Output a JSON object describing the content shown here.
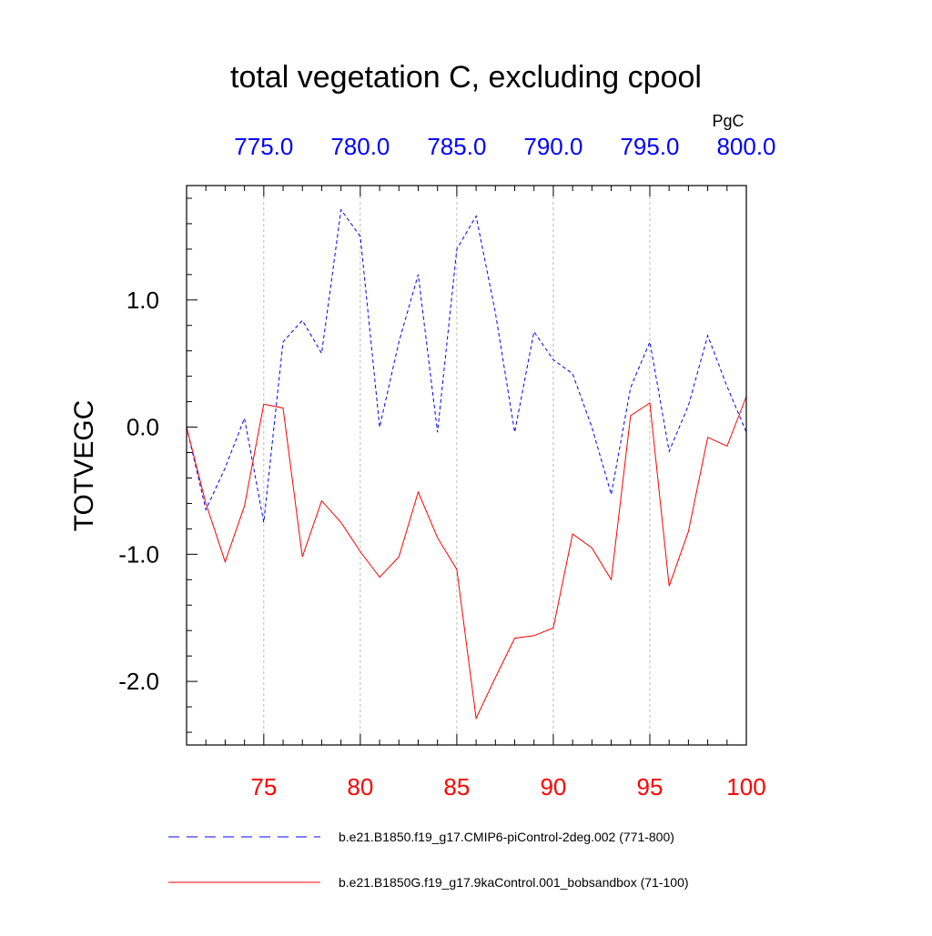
{
  "chart_data": {
    "type": "line",
    "title": "total vegetation C, excluding cpool",
    "ylabel": "TOTVEGC",
    "units": "PgC",
    "ylim": [
      -2.5,
      1.9
    ],
    "y_ticks": [
      -2.0,
      -1.0,
      0.0,
      1.0
    ],
    "y_tick_labels": [
      "-2.0",
      "-1.0",
      "0.0",
      "1.0"
    ],
    "bottom_axis": {
      "xlim": [
        71,
        100
      ],
      "ticks": [
        75,
        80,
        85,
        90,
        95,
        100
      ],
      "tick_labels": [
        "75",
        "80",
        "85",
        "90",
        "95",
        "100"
      ],
      "color": "#ff0000"
    },
    "top_axis": {
      "xlim": [
        771,
        800
      ],
      "ticks": [
        775,
        780,
        785,
        790,
        795,
        800
      ],
      "tick_labels": [
        "775.0",
        "780.0",
        "785.0",
        "790.0",
        "795.0",
        "800.0"
      ],
      "color": "#0000ff"
    },
    "grid": "vertical dashed at major x ticks",
    "legend_position": "bottom",
    "series": [
      {
        "name": "b.e21.B1850.f19_g17.CMIP6-piControl-2deg.002 (771-800)",
        "axis": "top",
        "color": "#0000ff",
        "style": "dashed",
        "x": [
          771,
          772,
          773,
          774,
          775,
          776,
          777,
          778,
          779,
          780,
          781,
          782,
          783,
          784,
          785,
          786,
          787,
          788,
          789,
          790,
          791,
          792,
          793,
          794,
          795,
          796,
          797,
          798,
          799,
          800
        ],
        "values": [
          0.0,
          -0.65,
          -0.32,
          0.07,
          -0.75,
          0.67,
          0.84,
          0.58,
          1.71,
          1.5,
          0.0,
          0.67,
          1.2,
          -0.04,
          1.4,
          1.66,
          0.9,
          -0.04,
          0.75,
          0.53,
          0.42,
          0.0,
          -0.53,
          0.31,
          0.67,
          -0.19,
          0.17,
          0.72,
          0.32,
          -0.04
        ]
      },
      {
        "name": "b.e21.B1850G.f19_g17.9kaControl.001_bobsandbox (71-100)",
        "axis": "bottom",
        "color": "#ff0000",
        "style": "solid",
        "x": [
          71,
          72,
          73,
          74,
          75,
          76,
          77,
          78,
          79,
          80,
          81,
          82,
          83,
          84,
          85,
          86,
          87,
          88,
          89,
          90,
          91,
          92,
          93,
          94,
          95,
          96,
          97,
          98,
          99,
          100
        ],
        "values": [
          0.0,
          -0.6,
          -1.06,
          -0.62,
          0.18,
          0.15,
          -1.02,
          -0.58,
          -0.75,
          -0.98,
          -1.18,
          -1.02,
          -0.51,
          -0.87,
          -1.12,
          -2.29,
          -1.97,
          -1.66,
          -1.64,
          -1.58,
          -0.84,
          -0.95,
          -1.2,
          0.09,
          0.19,
          -1.25,
          -0.82,
          -0.08,
          -0.15,
          0.24
        ]
      }
    ]
  }
}
